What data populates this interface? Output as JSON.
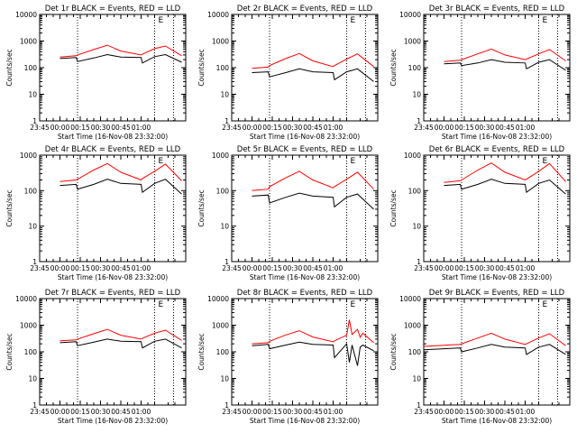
{
  "x_tick_labels": [
    "23:45",
    "00:00",
    "00:15",
    "00:30",
    "00:45",
    "01:00"
  ],
  "x_label": "Start Time (16-Nov-08 23:32:00)",
  "y_label": "Counts/sec",
  "y_tick_labels": [
    "1",
    "10",
    "100",
    "1000",
    "10000"
  ],
  "marker_label": "E",
  "colors": {
    "events": "#000000",
    "lld": "#ff0000",
    "frame": "#000000"
  },
  "chart_data": [
    {
      "type": "line",
      "title": "Det 1r BLACK = Events, RED = LLD",
      "ylim": [
        1,
        10000
      ],
      "yscale": "log",
      "xlim_minutes": [
        -15,
        93
      ],
      "xlabel": "Start Time (16-Nov-08 23:32:00)",
      "ylabel": "Counts/sec",
      "vlines_minutes": [
        13,
        70,
        84
      ],
      "series": [
        {
          "name": "Events",
          "x": [
            0,
            12,
            13,
            25,
            35,
            45,
            60,
            61,
            70,
            78,
            90
          ],
          "y": [
            220,
            240,
            170,
            230,
            310,
            250,
            240,
            150,
            260,
            310,
            160
          ]
        },
        {
          "name": "LLD",
          "x": [
            0,
            12,
            13,
            25,
            35,
            45,
            60,
            61,
            70,
            78,
            90
          ],
          "y": [
            250,
            280,
            300,
            480,
            700,
            420,
            300,
            320,
            520,
            650,
            280
          ]
        }
      ]
    },
    {
      "type": "line",
      "title": "Det 2r BLACK = Events, RED = LLD",
      "ylim": [
        1,
        10000
      ],
      "yscale": "log",
      "xlim_minutes": [
        -15,
        93
      ],
      "xlabel": "Start Time (16-Nov-08 23:32:00)",
      "ylabel": "Counts/sec",
      "vlines_minutes": [
        13,
        70,
        84
      ],
      "series": [
        {
          "name": "Events",
          "x": [
            0,
            12,
            13,
            25,
            35,
            45,
            60,
            61,
            70,
            78,
            90
          ],
          "y": [
            65,
            70,
            45,
            65,
            90,
            70,
            65,
            35,
            70,
            90,
            30
          ]
        },
        {
          "name": "LLD",
          "x": [
            0,
            12,
            13,
            25,
            35,
            45,
            60,
            61,
            70,
            78,
            90
          ],
          "y": [
            95,
            105,
            120,
            220,
            340,
            180,
            110,
            120,
            210,
            330,
            110
          ]
        }
      ]
    },
    {
      "type": "line",
      "title": "Det 3r BLACK = Events, RED = LLD",
      "ylim": [
        1,
        10000
      ],
      "yscale": "log",
      "xlim_minutes": [
        -15,
        93
      ],
      "xlabel": "Start Time (16-Nov-08 23:32:00)",
      "ylabel": "Counts/sec",
      "vlines_minutes": [
        13,
        70,
        84
      ],
      "series": [
        {
          "name": "Events",
          "x": [
            0,
            12,
            13,
            25,
            35,
            45,
            60,
            61,
            70,
            78,
            90
          ],
          "y": [
            140,
            150,
            120,
            150,
            200,
            160,
            150,
            90,
            160,
            200,
            80
          ]
        },
        {
          "name": "LLD",
          "x": [
            0,
            12,
            13,
            25,
            35,
            45,
            60,
            61,
            70,
            78,
            90
          ],
          "y": [
            170,
            190,
            200,
            330,
            500,
            300,
            200,
            210,
            330,
            480,
            180
          ]
        }
      ]
    },
    {
      "type": "line",
      "title": "Det 4r BLACK = Events, RED = LLD",
      "ylim": [
        1,
        1000
      ],
      "yscale": "log",
      "xlim_minutes": [
        -15,
        93
      ],
      "xlabel": "Start Time (16-Nov-08 23:32:00)",
      "ylabel": "Counts/sec",
      "vlines_minutes": [
        13,
        70,
        84
      ],
      "series": [
        {
          "name": "Events",
          "x": [
            0,
            12,
            13,
            25,
            35,
            45,
            60,
            61,
            70,
            78,
            90
          ],
          "y": [
            140,
            150,
            110,
            150,
            210,
            160,
            150,
            90,
            160,
            210,
            80
          ]
        },
        {
          "name": "LLD",
          "x": [
            0,
            12,
            13,
            25,
            35,
            45,
            60,
            61,
            70,
            78,
            90
          ],
          "y": [
            180,
            200,
            210,
            380,
            580,
            330,
            200,
            220,
            350,
            560,
            190
          ]
        }
      ]
    },
    {
      "type": "line",
      "title": "Det 5r BLACK = Events, RED = LLD",
      "ylim": [
        1,
        1000
      ],
      "yscale": "log",
      "xlim_minutes": [
        -15,
        93
      ],
      "xlabel": "Start Time (16-Nov-08 23:32:00)",
      "ylabel": "Counts/sec",
      "vlines_minutes": [
        13,
        70,
        84
      ],
      "series": [
        {
          "name": "Events",
          "x": [
            0,
            12,
            13,
            25,
            35,
            45,
            60,
            61,
            70,
            78,
            90
          ],
          "y": [
            70,
            75,
            45,
            65,
            85,
            70,
            65,
            35,
            65,
            80,
            30
          ]
        },
        {
          "name": "LLD",
          "x": [
            0,
            12,
            13,
            25,
            35,
            45,
            60,
            61,
            70,
            78,
            90
          ],
          "y": [
            100,
            110,
            130,
            230,
            350,
            200,
            120,
            130,
            210,
            330,
            110
          ]
        }
      ]
    },
    {
      "type": "line",
      "title": "Det 6r BLACK = Events, RED = LLD",
      "ylim": [
        1,
        1000
      ],
      "yscale": "log",
      "xlim_minutes": [
        -15,
        93
      ],
      "xlabel": "Start Time (16-Nov-08 23:32:00)",
      "ylabel": "Counts/sec",
      "vlines_minutes": [
        13,
        70,
        84
      ],
      "series": [
        {
          "name": "Events",
          "x": [
            0,
            12,
            13,
            25,
            35,
            45,
            60,
            61,
            70,
            78,
            90
          ],
          "y": [
            140,
            150,
            110,
            150,
            210,
            160,
            150,
            90,
            160,
            200,
            80
          ]
        },
        {
          "name": "LLD",
          "x": [
            0,
            12,
            13,
            25,
            35,
            45,
            60,
            61,
            70,
            78,
            90
          ],
          "y": [
            170,
            190,
            200,
            380,
            600,
            330,
            200,
            210,
            350,
            580,
            180
          ]
        }
      ]
    },
    {
      "type": "line",
      "title": "Det 7r BLACK = Events, RED = LLD",
      "ylim": [
        1,
        10000
      ],
      "yscale": "log",
      "xlim_minutes": [
        -15,
        93
      ],
      "xlabel": "Start Time (16-Nov-08 23:32:00)",
      "ylabel": "Counts/sec",
      "vlines_minutes": [
        13,
        70,
        84
      ],
      "series": [
        {
          "name": "Events",
          "x": [
            0,
            12,
            13,
            25,
            35,
            45,
            60,
            61,
            70,
            78,
            90
          ],
          "y": [
            220,
            240,
            170,
            230,
            300,
            250,
            240,
            140,
            250,
            300,
            140
          ]
        },
        {
          "name": "LLD",
          "x": [
            0,
            12,
            13,
            25,
            35,
            45,
            60,
            61,
            70,
            78,
            90
          ],
          "y": [
            260,
            280,
            300,
            480,
            700,
            420,
            300,
            320,
            500,
            650,
            270
          ]
        }
      ]
    },
    {
      "type": "line",
      "title": "Det 8r BLACK = Events, RED = LLD",
      "ylim": [
        1,
        10000
      ],
      "yscale": "log",
      "xlim_minutes": [
        -15,
        93
      ],
      "xlabel": "Start Time (16-Nov-08 23:32:00)",
      "ylabel": "Counts/sec",
      "vlines_minutes": [
        13,
        70,
        84
      ],
      "series": [
        {
          "name": "Events",
          "x": [
            0,
            12,
            13,
            25,
            35,
            45,
            60,
            61,
            70,
            72,
            74,
            78,
            80,
            82,
            90
          ],
          "y": [
            170,
            190,
            130,
            180,
            230,
            190,
            180,
            60,
            200,
            40,
            180,
            30,
            150,
            180,
            110
          ]
        },
        {
          "name": "LLD",
          "x": [
            0,
            12,
            13,
            25,
            35,
            45,
            60,
            61,
            70,
            72,
            74,
            78,
            80,
            82,
            90
          ],
          "y": [
            200,
            220,
            250,
            430,
            620,
            360,
            240,
            260,
            420,
            1600,
            450,
            700,
            350,
            500,
            220
          ]
        }
      ]
    },
    {
      "type": "line",
      "title": "Det 9r BLACK = Events, RED = LLD",
      "ylim": [
        1,
        10000
      ],
      "yscale": "log",
      "xlim_minutes": [
        -15,
        93
      ],
      "xlabel": "Start Time (16-Nov-08 23:32:00)",
      "ylabel": "Counts/sec",
      "vlines_minutes": [
        13,
        70,
        84
      ],
      "series": [
        {
          "name": "Events",
          "x": [
            -15,
            0,
            12,
            13,
            25,
            35,
            45,
            60,
            61,
            70,
            78,
            90
          ],
          "y": [
            120,
            130,
            140,
            100,
            140,
            190,
            150,
            140,
            80,
            150,
            190,
            80
          ]
        },
        {
          "name": "LLD",
          "x": [
            -15,
            0,
            12,
            13,
            25,
            35,
            45,
            60,
            61,
            70,
            78,
            90
          ],
          "y": [
            160,
            175,
            190,
            200,
            330,
            500,
            300,
            190,
            200,
            330,
            480,
            170
          ]
        }
      ]
    }
  ]
}
